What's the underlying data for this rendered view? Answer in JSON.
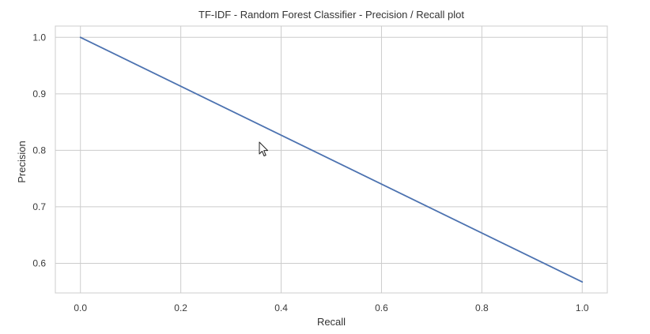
{
  "chart_data": {
    "type": "line",
    "title": "TF-IDF - Random Forest Classifier - Precision / Recall plot",
    "xlabel": "Recall",
    "ylabel": "Precision",
    "xlim": [
      -0.05,
      1.05
    ],
    "ylim": [
      0.5475,
      1.02
    ],
    "xticks": [
      0.0,
      0.2,
      0.4,
      0.6,
      0.8,
      1.0
    ],
    "xtick_labels": [
      "0.0",
      "0.2",
      "0.4",
      "0.6",
      "0.8",
      "1.0"
    ],
    "yticks": [
      0.6,
      0.7,
      0.8,
      0.9,
      1.0
    ],
    "ytick_labels": [
      "0.6",
      "0.7",
      "0.8",
      "0.9",
      "1.0"
    ],
    "grid": true,
    "colors": {
      "line": "#4c72b0",
      "grid": "#cccccc",
      "frame": "#cccccc"
    },
    "series": [
      {
        "x": [
          0.0,
          1.0
        ],
        "y": [
          1.0,
          0.567
        ]
      }
    ]
  }
}
